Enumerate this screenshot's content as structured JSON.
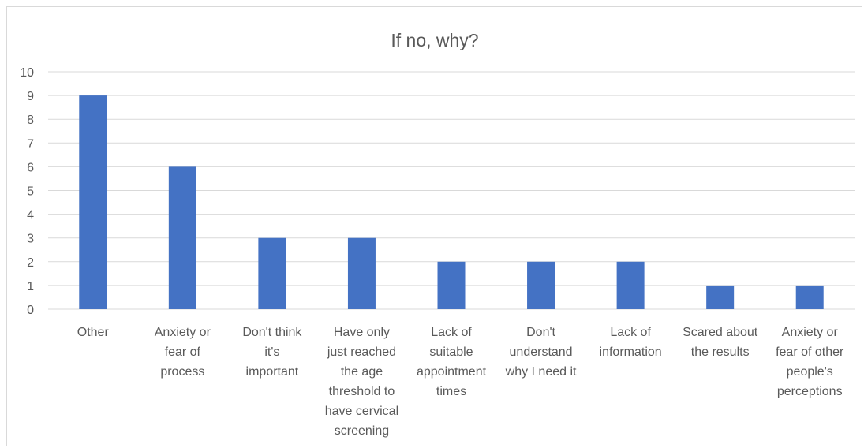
{
  "chart_data": {
    "type": "bar",
    "title": "If no, why?",
    "categories": [
      [
        "Other"
      ],
      [
        "Anxiety or",
        "fear of",
        "process"
      ],
      [
        "Don't think",
        "it's",
        "important"
      ],
      [
        "Have only",
        "just reached",
        "the age",
        "threshold to",
        "have cervical",
        "screening"
      ],
      [
        "Lack of",
        "suitable",
        "appointment",
        "times"
      ],
      [
        "Don't",
        "understand",
        "why I need it"
      ],
      [
        "Lack of",
        "information"
      ],
      [
        "Scared about",
        "the results"
      ],
      [
        "Anxiety or",
        "fear of other",
        "people's",
        "perceptions"
      ]
    ],
    "values": [
      9,
      6,
      3,
      3,
      2,
      2,
      2,
      1,
      1
    ],
    "ylim": [
      0,
      10
    ],
    "yticks": [
      0,
      1,
      2,
      3,
      4,
      5,
      6,
      7,
      8,
      9,
      10
    ],
    "grid": true,
    "legend": "none",
    "bar_color": "#4472C4",
    "grid_color": "#d9d9d9",
    "text_color": "#595959"
  }
}
